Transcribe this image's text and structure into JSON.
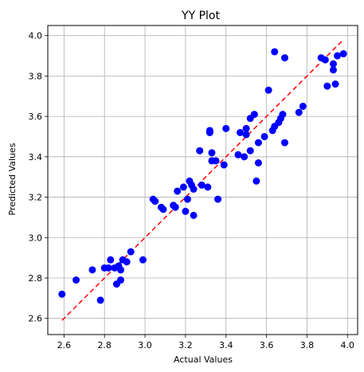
{
  "chart_data": {
    "type": "scatter",
    "title": "YY Plot",
    "xlabel": "Actual Values",
    "ylabel": "Predicted Values",
    "xlim": [
      2.52,
      4.05
    ],
    "ylim": [
      2.52,
      4.05
    ],
    "x_ticks": [
      "2.6",
      "2.8",
      "3.0",
      "3.2",
      "3.4",
      "3.6",
      "3.8",
      "4.0"
    ],
    "y_ticks": [
      "2.6",
      "2.8",
      "3.0",
      "3.2",
      "3.4",
      "3.6",
      "3.8",
      "4.0"
    ],
    "grid": true,
    "point_color": "#0000ff",
    "reference_line": {
      "from": [
        2.59,
        2.59
      ],
      "to": [
        3.98,
        3.98
      ],
      "color": "#ff0000",
      "style": "dashed"
    },
    "points": [
      [
        2.59,
        2.72
      ],
      [
        2.66,
        2.79
      ],
      [
        2.74,
        2.84
      ],
      [
        2.78,
        2.69
      ],
      [
        2.8,
        2.85
      ],
      [
        2.82,
        2.85
      ],
      [
        2.83,
        2.89
      ],
      [
        2.85,
        2.85
      ],
      [
        2.86,
        2.77
      ],
      [
        2.87,
        2.86
      ],
      [
        2.88,
        2.79
      ],
      [
        2.88,
        2.84
      ],
      [
        2.89,
        2.89
      ],
      [
        2.91,
        2.88
      ],
      [
        2.93,
        2.93
      ],
      [
        2.99,
        2.89
      ],
      [
        3.04,
        3.19
      ],
      [
        3.05,
        3.18
      ],
      [
        3.08,
        3.15
      ],
      [
        3.09,
        3.14
      ],
      [
        3.14,
        3.16
      ],
      [
        3.15,
        3.15
      ],
      [
        3.16,
        3.23
      ],
      [
        3.19,
        3.25
      ],
      [
        3.2,
        3.13
      ],
      [
        3.21,
        3.19
      ],
      [
        3.22,
        3.28
      ],
      [
        3.23,
        3.26
      ],
      [
        3.24,
        3.11
      ],
      [
        3.24,
        3.24
      ],
      [
        3.27,
        3.43
      ],
      [
        3.28,
        3.26
      ],
      [
        3.31,
        3.25
      ],
      [
        3.32,
        3.52
      ],
      [
        3.32,
        3.53
      ],
      [
        3.33,
        3.42
      ],
      [
        3.33,
        3.38
      ],
      [
        3.35,
        3.38
      ],
      [
        3.36,
        3.19
      ],
      [
        3.39,
        3.36
      ],
      [
        3.4,
        3.54
      ],
      [
        3.46,
        3.41
      ],
      [
        3.47,
        3.52
      ],
      [
        3.49,
        3.4
      ],
      [
        3.5,
        3.54
      ],
      [
        3.5,
        3.51
      ],
      [
        3.52,
        3.43
      ],
      [
        3.52,
        3.59
      ],
      [
        3.54,
        3.61
      ],
      [
        3.55,
        3.28
      ],
      [
        3.56,
        3.37
      ],
      [
        3.56,
        3.47
      ],
      [
        3.59,
        3.5
      ],
      [
        3.61,
        3.73
      ],
      [
        3.63,
        3.53
      ],
      [
        3.64,
        3.92
      ],
      [
        3.64,
        3.55
      ],
      [
        3.66,
        3.57
      ],
      [
        3.67,
        3.59
      ],
      [
        3.68,
        3.61
      ],
      [
        3.69,
        3.47
      ],
      [
        3.69,
        3.89
      ],
      [
        3.76,
        3.62
      ],
      [
        3.78,
        3.65
      ],
      [
        3.87,
        3.89
      ],
      [
        3.89,
        3.88
      ],
      [
        3.9,
        3.75
      ],
      [
        3.93,
        3.83
      ],
      [
        3.93,
        3.86
      ],
      [
        3.94,
        3.76
      ],
      [
        3.95,
        3.9
      ],
      [
        3.98,
        3.91
      ]
    ]
  }
}
